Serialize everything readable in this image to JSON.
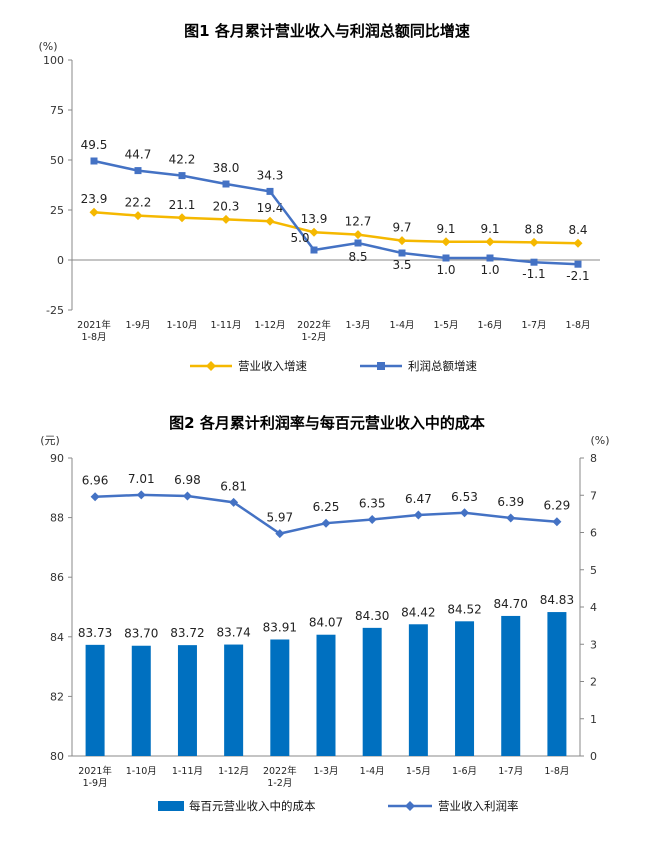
{
  "chart_data": [
    {
      "type": "line",
      "title": "图1  各月累计营业收入与利润总额同比增速",
      "unit_label": "(%)",
      "ylim": [
        -25,
        100
      ],
      "yticks": [
        "100",
        "75",
        "50",
        "25",
        "0",
        "-25"
      ],
      "categories": [
        "2021年\n1-8月",
        "1-9月",
        "1-10月",
        "1-11月",
        "1-12月",
        "2022年\n1-2月",
        "1-3月",
        "1-4月",
        "1-5月",
        "1-6月",
        "1-7月",
        "1-8月"
      ],
      "series": [
        {
          "name": "营业收入增速",
          "color": "#F5B800",
          "values": [
            23.9,
            22.2,
            21.1,
            20.3,
            19.4,
            13.9,
            12.7,
            9.7,
            9.1,
            9.1,
            8.8,
            8.4
          ],
          "labels": [
            "23.9",
            "22.2",
            "21.1",
            "20.3",
            "19.4",
            "13.9",
            "12.7",
            "9.7",
            "9.1",
            "9.1",
            "8.8",
            "8.4"
          ]
        },
        {
          "name": "利润总额增速",
          "color": "#4472C4",
          "values": [
            49.5,
            44.7,
            42.2,
            38.0,
            34.3,
            5.0,
            8.5,
            3.5,
            1.0,
            1.0,
            -1.1,
            -2.1
          ],
          "labels": [
            "49.5",
            "44.7",
            "42.2",
            "38.0",
            "34.3",
            "5.0",
            "8.5",
            "3.5",
            "1.0",
            "1.0",
            "-1.1",
            "-2.1"
          ]
        }
      ],
      "legend_position": "bottom"
    },
    {
      "type": "bar",
      "title": "图2  各月累计利润率与每百元营业收入中的成本",
      "left_unit_label": "(元)",
      "right_unit_label": "(%)",
      "ylim_left": [
        80,
        90
      ],
      "yticks_left": [
        "90",
        "88",
        "86",
        "84",
        "82",
        "80"
      ],
      "ylim_right": [
        0,
        8
      ],
      "yticks_right": [
        "8",
        "7",
        "6",
        "5",
        "4",
        "3",
        "2",
        "1",
        "0"
      ],
      "categories": [
        "2021年\n1-9月",
        "1-10月",
        "1-11月",
        "1-12月",
        "2022年\n1-2月",
        "1-3月",
        "1-4月",
        "1-5月",
        "1-6月",
        "1-7月",
        "1-8月"
      ],
      "series": [
        {
          "name": "每百元营业收入中的成本",
          "type": "bar",
          "axis": "left",
          "color": "#0070C0",
          "values": [
            83.73,
            83.7,
            83.72,
            83.74,
            83.91,
            84.07,
            84.3,
            84.42,
            84.52,
            84.7,
            84.83
          ],
          "labels": [
            "83.73",
            "83.70",
            "83.72",
            "83.74",
            "83.91",
            "84.07",
            "84.30",
            "84.42",
            "84.52",
            "84.70",
            "84.83"
          ]
        },
        {
          "name": "营业收入利润率",
          "type": "line",
          "axis": "right",
          "color": "#4472C4",
          "values": [
            6.96,
            7.01,
            6.98,
            6.81,
            5.97,
            6.25,
            6.35,
            6.47,
            6.53,
            6.39,
            6.29
          ],
          "labels": [
            "6.96",
            "7.01",
            "6.98",
            "6.81",
            "5.97",
            "6.25",
            "6.35",
            "6.47",
            "6.53",
            "6.39",
            "6.29"
          ]
        }
      ],
      "legend_position": "bottom"
    }
  ]
}
